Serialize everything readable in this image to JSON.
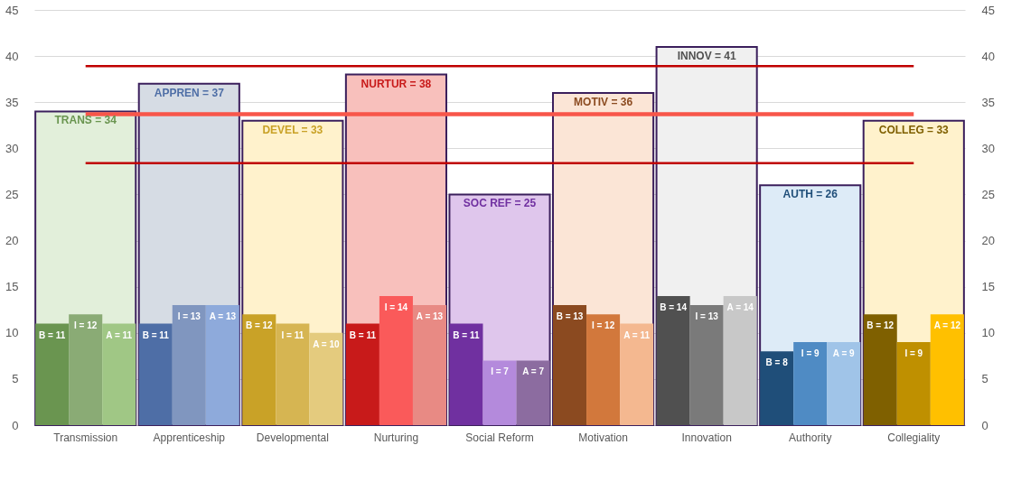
{
  "chart_data": {
    "type": "bar",
    "categories": [
      "Transmission",
      "Apprenticeship",
      "Developmental",
      "Nurturing",
      "Social Reform",
      "Motivation",
      "Innovation",
      "Authority",
      "Collegiality"
    ],
    "series": [
      {
        "values": [
          34,
          37,
          33,
          38,
          25,
          36,
          41,
          26,
          33
        ],
        "colors": [
          "#e2efda",
          "#d6dce4",
          "#fff2cc",
          "#f8c0bc",
          "#dfc6ec",
          "#fbe5d6",
          "#f0f0f0",
          "#ddebf7",
          "#fff2cc"
        ],
        "value_labels": [
          "TRANS = 34",
          "APPREN = 37",
          "DEVEL = 33",
          "NURTUR = 38",
          "SOC REF = 25",
          "MOTIV = 36",
          "INNOV = 41",
          "AUTH = 26",
          "COLLEG = 33"
        ]
      },
      {
        "values": [
          11,
          11,
          12,
          11,
          11,
          13,
          14,
          8,
          12
        ],
        "colors": [
          "#6a9550",
          "#4e6ea6",
          "#c9a227",
          "#c81a1a",
          "#7030a0",
          "#8b4a20",
          "#505050",
          "#1f4e79",
          "#7f6000"
        ],
        "value_labels": [
          "B = 11",
          "B = 11",
          "B = 12",
          "B = 11",
          "B = 11",
          "B = 13",
          "B = 14",
          "B = 8",
          "B = 12"
        ]
      },
      {
        "values": [
          12,
          13,
          11,
          14,
          7,
          12,
          13,
          9,
          9
        ],
        "colors": [
          "#8aab75",
          "#8096bf",
          "#d6b552",
          "#fa5a5a",
          "#b48adc",
          "#d2783c",
          "#7a7a7a",
          "#4f8bc4",
          "#bf9000"
        ],
        "value_labels": [
          "I = 12",
          "I = 13",
          "I = 11",
          "I = 14",
          "I = 7",
          "I = 12",
          "I = 13",
          "I = 9",
          "I = 9"
        ]
      },
      {
        "values": [
          11,
          13,
          10,
          13,
          7,
          11,
          14,
          9,
          12
        ],
        "colors": [
          "#a0c785",
          "#8eaadb",
          "#e4cb7e",
          "#e88a84",
          "#8c6ca0",
          "#f4b890",
          "#c8c8c8",
          "#a0c4e8",
          "#ffc000"
        ],
        "value_labels": [
          "A = 11",
          "A = 13",
          "A = 10",
          "A = 13",
          "A = 7",
          "A = 11",
          "A = 14",
          "A = 9",
          "A = 12"
        ]
      }
    ],
    "ylim": [
      0,
      45
    ],
    "yticks": [
      0,
      5,
      10,
      15,
      20,
      25,
      30,
      35,
      40,
      45
    ],
    "y2lim": [
      0,
      45
    ],
    "y2ticks": [
      0,
      5,
      10,
      15,
      20,
      25,
      30,
      35,
      40,
      45
    ],
    "ref_lines": [
      {
        "axis": "y",
        "value": 38.9,
        "color": "#c00000"
      },
      {
        "axis": "y",
        "value": 33.7,
        "color": "#f8564a"
      },
      {
        "axis": "y",
        "value": 28.4,
        "color": "#c00000"
      }
    ],
    "grid": "y"
  }
}
